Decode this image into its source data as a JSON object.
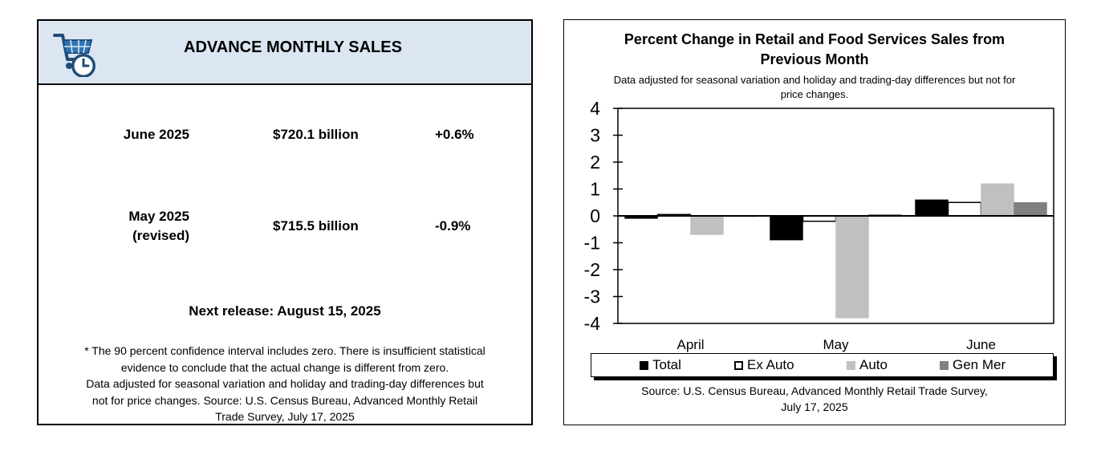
{
  "summary": {
    "title": "ADVANCE MONTHLY SALES",
    "logo_icon": "shopping-cart-clock-icon",
    "rows": [
      {
        "period_line1": "June 2025",
        "period_line2": "",
        "amount": "$720.1 billion",
        "change": "+0.6%"
      },
      {
        "period_line1": "May 2025",
        "period_line2": "(revised)",
        "amount": "$715.5 billion",
        "change": "-0.9%"
      }
    ],
    "next_release": "Next release: August 15, 2025",
    "footnote_line1": "* The 90 percent confidence interval includes zero. There is insufficient statistical",
    "footnote_line2": "evidence to conclude that the actual change is different from zero.",
    "footnote_line3": "Data adjusted for seasonal variation and holiday and trading-day differences but",
    "footnote_line4": "not for price changes. Source: U.S. Census Bureau, Advanced Monthly Retail",
    "footnote_line5": "Trade Survey, July 17, 2025"
  },
  "chart_data": {
    "type": "bar",
    "title_line1": "Percent Change in Retail and Food Services Sales from",
    "title_line2": "Previous Month",
    "subtitle_line1": "Data adjusted for seasonal variation and holiday and trading-day differences but not for",
    "subtitle_line2": "price changes.",
    "categories": [
      "April",
      "May",
      "June"
    ],
    "series": [
      {
        "name": "Total",
        "color": "#000000",
        "values": [
          -0.1,
          -0.9,
          0.6
        ]
      },
      {
        "name": "Ex Auto",
        "color": "#ffffff",
        "values": [
          0.05,
          -0.2,
          0.5
        ]
      },
      {
        "name": "Auto",
        "color": "#c0c0c0",
        "values": [
          -0.7,
          -3.8,
          1.2
        ]
      },
      {
        "name": "Gen Mer",
        "color": "#808080",
        "values": [
          0.0,
          0.05,
          0.5
        ]
      }
    ],
    "ylim": [
      -4,
      4
    ],
    "yticks": [
      4,
      3,
      2,
      1,
      0,
      -1,
      -2,
      -3,
      -4
    ],
    "grid": false,
    "legend_position": "bottom",
    "source_line1": "Source: U.S. Census Bureau, Advanced Monthly Retail Trade Survey,",
    "source_line2": "July 17, 2025"
  }
}
